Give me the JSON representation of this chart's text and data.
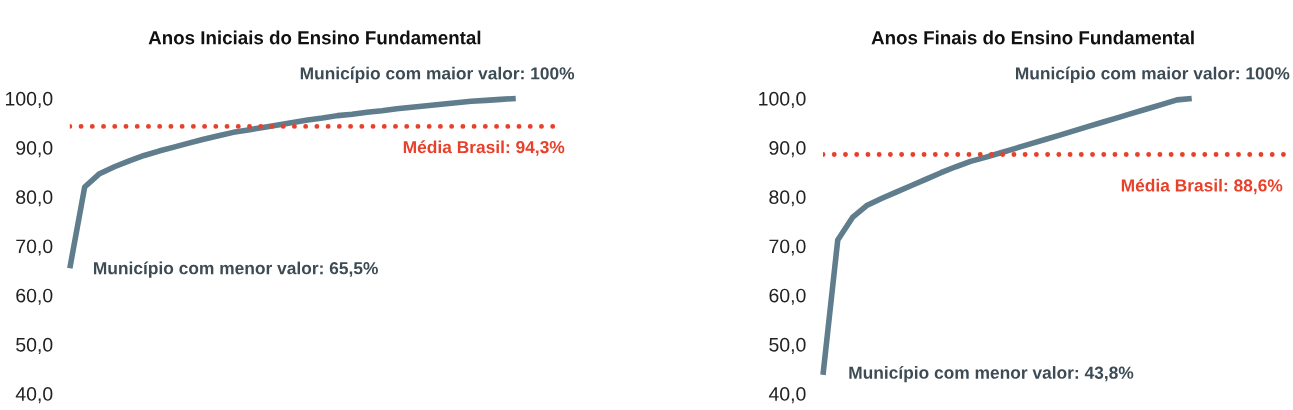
{
  "chart_data": [
    {
      "type": "line",
      "title": "Anos Iniciais do Ensino Fundamental",
      "categories": [
        null,
        null,
        null,
        null,
        null,
        null,
        null,
        null,
        null,
        null,
        null,
        null,
        null,
        null,
        null,
        null,
        null,
        null,
        null,
        null,
        null,
        null,
        null,
        null,
        null,
        null,
        null,
        null,
        null,
        null,
        null
      ],
      "series": [
        {
          "color": "#5f7d8c",
          "values": [
            65.5,
            82.0,
            84.7,
            86.1,
            87.3,
            88.4,
            89.3,
            90.1,
            90.9,
            91.7,
            92.4,
            93.1,
            93.6,
            94.1,
            94.6,
            95.1,
            95.6,
            96.0,
            96.5,
            96.8,
            97.2,
            97.5,
            97.9,
            98.2,
            98.5,
            98.8,
            99.1,
            99.4,
            99.6,
            99.8,
            100.0
          ]
        }
      ],
      "ylim": [
        40,
        100
      ],
      "yticks": [
        {
          "value": 40,
          "label": "40,0"
        },
        {
          "value": 50,
          "label": "50,0"
        },
        {
          "value": 60,
          "label": "60,0"
        },
        {
          "value": 70,
          "label": "70,0"
        },
        {
          "value": 80,
          "label": "80,0"
        },
        {
          "value": 90,
          "label": "90,0"
        },
        {
          "value": 100,
          "label": "100,0"
        }
      ],
      "ref_lines": [
        {
          "axis": "y",
          "value": 94.3,
          "label": "Média Brasil: 94,3%",
          "color": "#e8412b",
          "line_style": "dotted"
        }
      ],
      "annotations": [
        "Município com maior valor: 100%",
        "Município com menor valor: 65,5%"
      ],
      "tick_labels": "y",
      "grid": false,
      "legend": false,
      "marker": "none",
      "line_style": "solid"
    },
    {
      "type": "line",
      "title": "Anos Finais do Ensino Fundamental",
      "categories": [
        null,
        null,
        null,
        null,
        null,
        null,
        null,
        null,
        null,
        null,
        null,
        null,
        null,
        null,
        null,
        null,
        null,
        null,
        null,
        null,
        null,
        null,
        null,
        null,
        null,
        null
      ],
      "series": [
        {
          "color": "#5f7d8c",
          "values": [
            43.8,
            71.2,
            75.8,
            78.3,
            79.7,
            81.0,
            82.3,
            83.6,
            84.9,
            86.1,
            87.2,
            88.0,
            88.9,
            89.8,
            90.7,
            91.6,
            92.5,
            93.4,
            94.3,
            95.2,
            96.1,
            97.0,
            97.9,
            98.8,
            99.7,
            100.0
          ]
        }
      ],
      "ylim": [
        40,
        100
      ],
      "yticks": [
        {
          "value": 40,
          "label": "40,0"
        },
        {
          "value": 50,
          "label": "50,0"
        },
        {
          "value": 60,
          "label": "60,0"
        },
        {
          "value": 70,
          "label": "70,0"
        },
        {
          "value": 80,
          "label": "80,0"
        },
        {
          "value": 90,
          "label": "90,0"
        },
        {
          "value": 100,
          "label": "100,0"
        }
      ],
      "ref_lines": [
        {
          "axis": "y",
          "value": 88.6,
          "label": "Média Brasil: 88,6%",
          "color": "#e8412b",
          "line_style": "dotted"
        }
      ],
      "annotations": [
        "Município com maior valor: 100%",
        "Município com menor valor: 43,8%"
      ],
      "tick_labels": "y",
      "grid": false,
      "legend": false,
      "marker": "none",
      "line_style": "solid"
    }
  ]
}
